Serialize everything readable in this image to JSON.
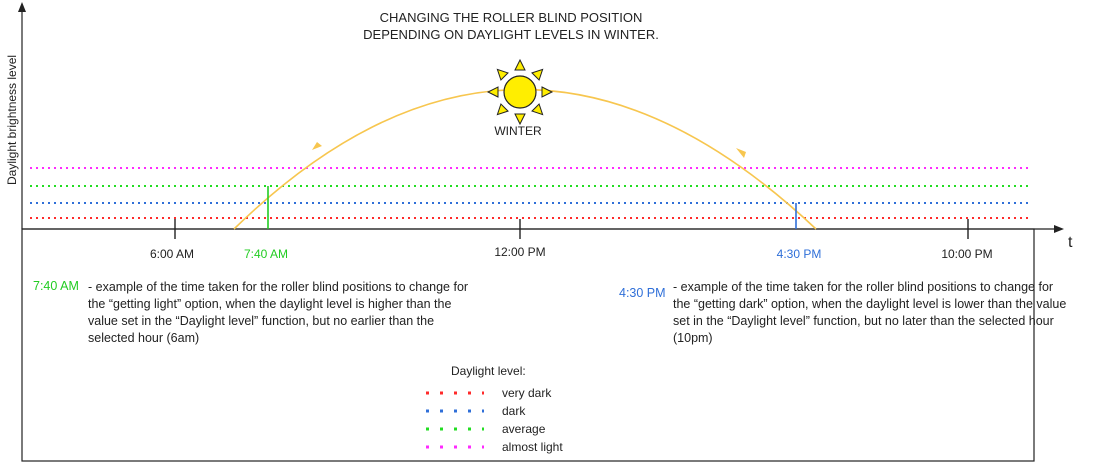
{
  "title": {
    "line1": "CHANGING THE ROLLER BLIND POSITION",
    "line2": "DEPENDING ON DAYLIGHT LEVELS IN WINTER."
  },
  "axes": {
    "y_label": "Daylight brightness level",
    "x_label": "t"
  },
  "season_label": "WINTER",
  "time_labels": {
    "t600": "6:00 AM",
    "t740": "7:40 AM",
    "t1200": "12:00 PM",
    "t430": "4:30 PM",
    "t1000": "10:00 PM"
  },
  "notes": {
    "left_time": "7:40 AM",
    "left_text": "- example of the time taken for the roller blind positions to change for the “getting light” option, when the daylight level is higher than the value set in the “Daylight level” function, but no earlier than the selected hour (6am)",
    "right_time": "4:30 PM",
    "right_text": "- example of the time taken for the roller blind positions to change for the “getting dark” option, when the daylight level is lower than the value set in the “Daylight level” function, but no later than the selected hour (10pm)"
  },
  "legend": {
    "title": "Daylight level:",
    "items": [
      {
        "label": "very dark",
        "color": "#ff2a2a"
      },
      {
        "label": "dark",
        "color": "#2f6fd8"
      },
      {
        "label": "average",
        "color": "#22dd22"
      },
      {
        "label": "almost light",
        "color": "#ff2aff"
      }
    ]
  },
  "colors": {
    "sun_fill": "#ffee00",
    "sun_arc": "#f7c64f",
    "green_time": "#22cc22",
    "blue_time": "#2f6fd8",
    "axis": "#222222"
  }
}
